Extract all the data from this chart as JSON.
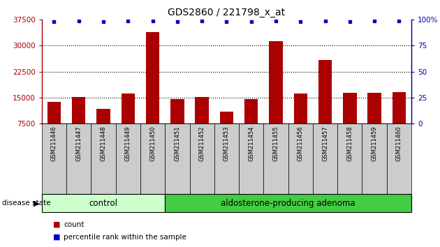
{
  "title": "GDS2860 / 221798_x_at",
  "samples": [
    "GSM211446",
    "GSM211447",
    "GSM211448",
    "GSM211449",
    "GSM211450",
    "GSM211451",
    "GSM211452",
    "GSM211453",
    "GSM211454",
    "GSM211455",
    "GSM211456",
    "GSM211457",
    "GSM211458",
    "GSM211459",
    "GSM211460"
  ],
  "counts": [
    13800,
    15100,
    11800,
    16200,
    34000,
    14500,
    15100,
    11000,
    14600,
    31300,
    16100,
    25800,
    16300,
    16300,
    16600
  ],
  "percentile_ranks": [
    98,
    99,
    98,
    99,
    99,
    98,
    99,
    98,
    98,
    99,
    98,
    99,
    98,
    99,
    99
  ],
  "control_count": 5,
  "ylim_left": [
    7500,
    37500
  ],
  "ylim_right": [
    0,
    100
  ],
  "yticks_left": [
    7500,
    15000,
    22500,
    30000,
    37500
  ],
  "ytick_labels_left": [
    "7500",
    "15000",
    "22500",
    "30000",
    "37500"
  ],
  "yticks_right": [
    0,
    25,
    50,
    75,
    100
  ],
  "ytick_labels_right": [
    "0",
    "25",
    "50",
    "75",
    "100%"
  ],
  "bar_color": "#aa0000",
  "dot_color": "#0000bb",
  "control_bg": "#ccffcc",
  "adenoma_bg": "#44cc44",
  "tick_label_bg": "#cccccc",
  "disease_label": "disease state",
  "group_labels": [
    "control",
    "aldosterone-producing adenoma"
  ],
  "legend_count_label": "count",
  "legend_percentile_label": "percentile rank within the sample"
}
